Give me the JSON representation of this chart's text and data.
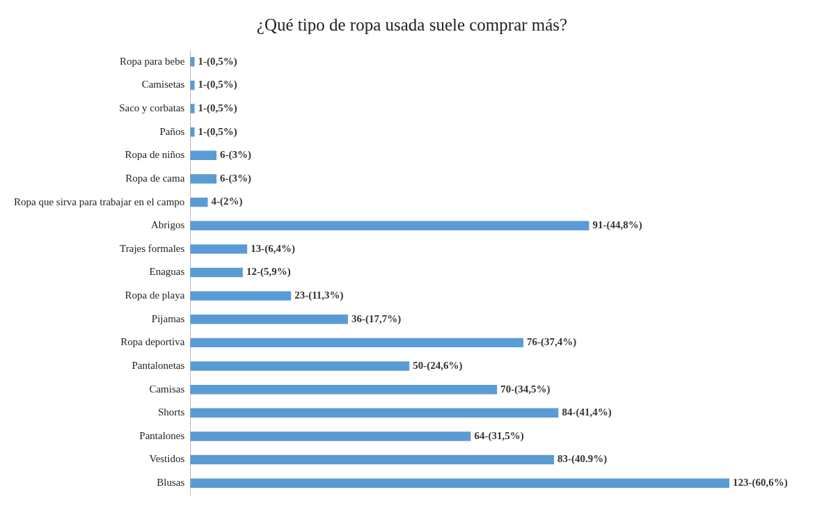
{
  "chart_data": {
    "type": "bar",
    "orientation": "horizontal",
    "title": "¿Qué tipo de ropa usada suele comprar más?",
    "categories": [
      "Ropa para bebe",
      "Camisetas",
      "Saco y corbatas",
      "Paños",
      "Ropa de niños",
      "Ropa de cama",
      "Ropa que sirva para trabajar en el campo",
      "Abrigos",
      "Trajes formales",
      "Enaguas",
      "Ropa de playa",
      "Pijamas",
      "Ropa deportiva",
      "Pantalonetas",
      "Camisas",
      "Shorts",
      "Pantalones",
      "Vestidos",
      "Blusas"
    ],
    "values": [
      1,
      1,
      1,
      1,
      6,
      6,
      4,
      91,
      13,
      12,
      23,
      36,
      76,
      50,
      70,
      84,
      64,
      83,
      123
    ],
    "value_labels": [
      "1-(0,5%)",
      "1-(0,5%)",
      "1-(0,5%)",
      "1-(0,5%)",
      "6-(3%)",
      "6-(3%)",
      "4-(2%)",
      "91-(44,8%)",
      "13-(6,4%)",
      "12-(5,9%)",
      "23-(11,3%)",
      "36-(17,7%)",
      "76-(37,4%)",
      "50-(24,6%)",
      "70-(34,5%)",
      "84-(41,4%)",
      "64-(31,5%)",
      "83-(40.9%)",
      "123-(60,6%)"
    ],
    "color": "#5b9bd5",
    "grid": false,
    "legend": false
  }
}
